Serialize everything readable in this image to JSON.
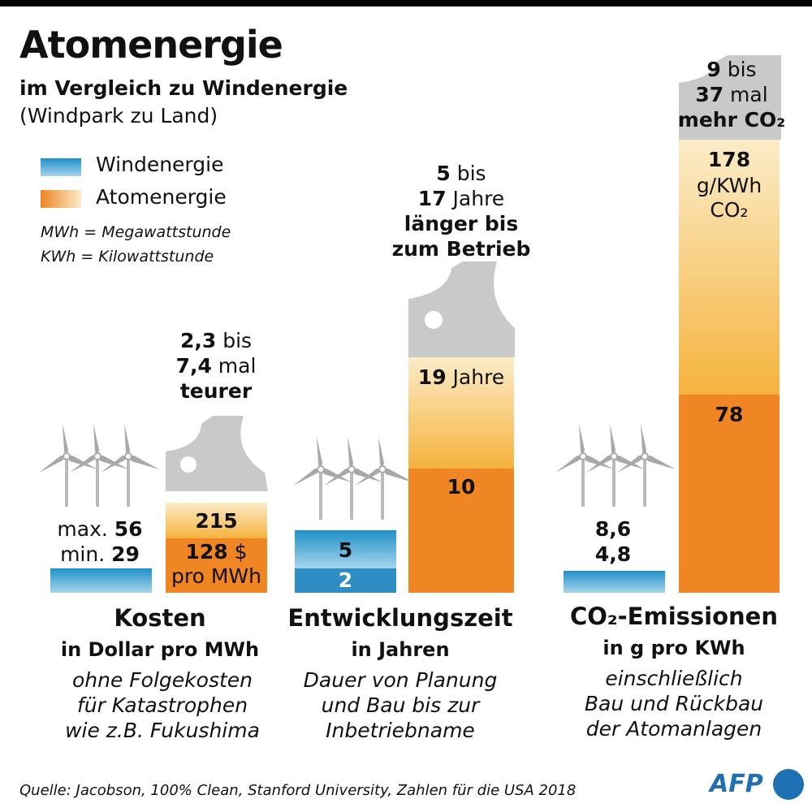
{
  "header": {
    "title": "Atomenergie",
    "subtitle": "im Vergleich zu Windenergie",
    "subtitle2": "(Windpark zu Land)"
  },
  "legend": {
    "wind": "Windenergie",
    "nuclear": "Atomenergie",
    "note1": "MWh = Megawattstunde",
    "note2": "KWh = Kilowattstunde"
  },
  "colors": {
    "wind": "#2d8dc4",
    "nuclear_min": "#ef8523",
    "nuclear_max": "#f6b33e",
    "plant_grey": "#c8c9c9"
  },
  "chart_data": [
    {
      "type": "bar",
      "title": "Kosten",
      "unit": "in Dollar pro MWh",
      "note": [
        "ohne Folgekosten",
        "für Katastrophen",
        "wie z.B. Fukushima"
      ],
      "series": [
        {
          "name": "Windenergie",
          "min": 29,
          "max": 56
        },
        {
          "name": "Atomenergie",
          "min": 128,
          "max": 215
        }
      ],
      "labels": {
        "wind_max_prefix": "max.",
        "wind_max": "56",
        "wind_min_prefix": "min.",
        "wind_min": "29",
        "nuc_max": "215",
        "nuc_min": "128",
        "nuc_min_suffix": "$",
        "nuc_unit": "pro MWh"
      },
      "comparison": {
        "l1_bold": "2,3",
        "l1": " bis",
        "l2_bold": "7,4",
        "l2": " mal",
        "l3": "teurer"
      }
    },
    {
      "type": "bar",
      "title": "Entwicklungszeit",
      "unit": "in Jahren",
      "note": [
        "Dauer von Planung",
        "und Bau bis zur",
        "Inbetriebname"
      ],
      "series": [
        {
          "name": "Windenergie",
          "min": 2,
          "max": 5
        },
        {
          "name": "Atomenergie",
          "min": 10,
          "max": 19
        }
      ],
      "labels": {
        "wind_max": "5",
        "wind_min": "2",
        "nuc_max": "19",
        "nuc_max_suffix": " Jahre",
        "nuc_min": "10"
      },
      "comparison": {
        "l1_bold": "5",
        "l1": " bis",
        "l2_bold": "17",
        "l2": " Jahre",
        "l3": "länger bis",
        "l4": "zum Betrieb"
      }
    },
    {
      "type": "bar",
      "title": "CO₂-Emissionen",
      "unit": "in g pro KWh",
      "note": [
        "einschließlich",
        "Bau und Rückbau",
        "der Atomanlagen"
      ],
      "series": [
        {
          "name": "Windenergie",
          "min": 4.8,
          "max": 8.6
        },
        {
          "name": "Atomenergie",
          "min": 78,
          "max": 178
        }
      ],
      "labels": {
        "wind_max": "8,6",
        "wind_min": "4,8",
        "nuc_max": "178",
        "nuc_unit1": "g/KWh",
        "nuc_unit2": "CO₂",
        "nuc_min": "78"
      },
      "comparison": {
        "l1_bold": "9",
        "l1": " bis",
        "l2_bold": "37",
        "l2": " mal",
        "l3": "mehr CO₂"
      }
    }
  ],
  "footer": {
    "source": "Quelle: Jacobson, 100% Clean, Stanford University, Zahlen für die USA 2018",
    "logo": "AFP"
  }
}
